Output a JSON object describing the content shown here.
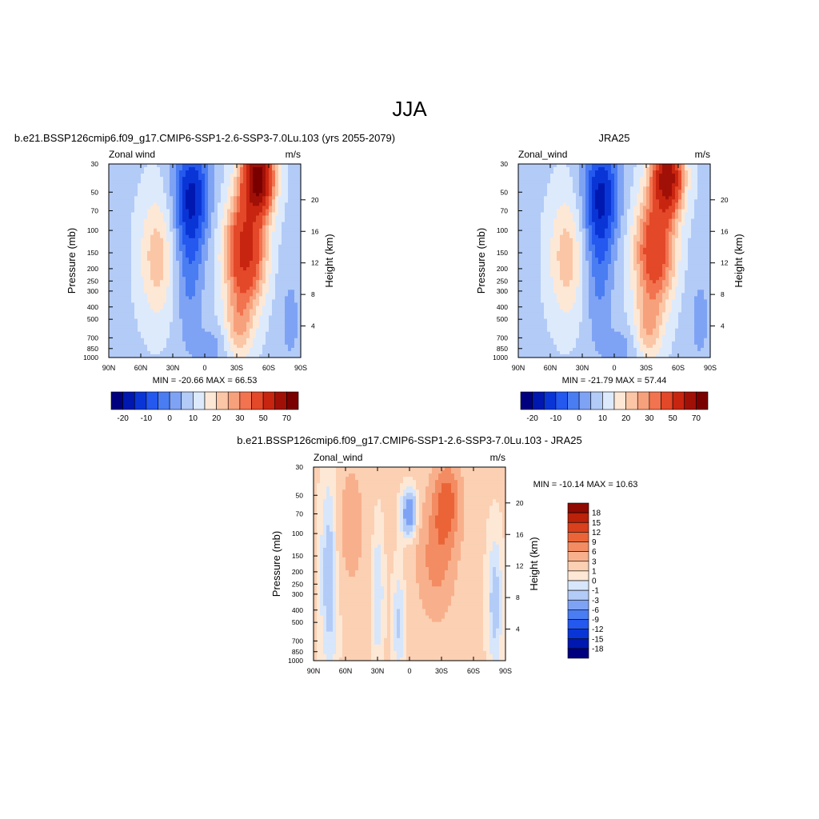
{
  "figure": {
    "title": "JJA"
  },
  "colors": {
    "abs_scale": [
      "#00007f",
      "#0018b0",
      "#0a35d6",
      "#2458ee",
      "#4a7cf2",
      "#7fa3f4",
      "#b3cbf7",
      "#ddeafc",
      "#fde8d6",
      "#fbc6a6",
      "#f7a07c",
      "#f2734f",
      "#e34829",
      "#c82511",
      "#a11007",
      "#7a0000"
    ],
    "diff_scale": [
      "#00007f",
      "#0018b0",
      "#0a35d6",
      "#2458ee",
      "#4a7cf2",
      "#7fa3f4",
      "#b3cbf7",
      "#d7e6fa",
      "#fde8d6",
      "#fbd0b3",
      "#f8b08c",
      "#f38c62",
      "#ea6438",
      "#d9401c",
      "#bb2209",
      "#8e0a02"
    ]
  },
  "chart_data": [
    {
      "type": "heatmap",
      "title": "b.e21.BSSP126cmip6.f09_g17.CMIP6-SSP1-2.6-SSP3-7.0Lu.103 (yrs 2055-2079)",
      "left_label": "Zonal wind",
      "right_label": "m/s",
      "xlabel": "",
      "ylabel": "Pressure (mb)",
      "y2label": "Height (km)",
      "x_ticks": [
        "90N",
        "60N",
        "30N",
        "0",
        "30S",
        "60S",
        "90S"
      ],
      "y_ticks": [
        "30",
        "50",
        "70",
        "100",
        "150",
        "200",
        "250",
        "300",
        "400",
        "500",
        "700",
        "850",
        "1000"
      ],
      "y2_ticks": [
        "20",
        "16",
        "12",
        "8",
        "4"
      ],
      "stats": "MIN = -20.66  MAX =  66.53",
      "min": -20.66,
      "max": 66.53,
      "colorbar_labels": [
        "-20",
        "-10",
        "0",
        "10",
        "20",
        "30",
        "50",
        "70"
      ],
      "ylog": true,
      "ylim": [
        1000,
        30
      ]
    },
    {
      "type": "heatmap",
      "title": "JRA25",
      "left_label": "Zonal_wind",
      "right_label": "m/s",
      "xlabel": "",
      "ylabel": "Pressure (mb)",
      "y2label": "Height (km)",
      "x_ticks": [
        "90N",
        "60N",
        "30N",
        "0",
        "30S",
        "60S",
        "90S"
      ],
      "y_ticks": [
        "30",
        "50",
        "70",
        "100",
        "150",
        "200",
        "250",
        "300",
        "400",
        "500",
        "700",
        "850",
        "1000"
      ],
      "y2_ticks": [
        "20",
        "16",
        "12",
        "8",
        "4"
      ],
      "stats": "MIN = -21.79  MAX =  57.44",
      "min": -21.79,
      "max": 57.44,
      "colorbar_labels": [
        "-20",
        "-10",
        "0",
        "10",
        "20",
        "30",
        "50",
        "70"
      ],
      "ylog": true,
      "ylim": [
        1000,
        30
      ]
    },
    {
      "type": "heatmap",
      "title": "b.e21.BSSP126cmip6.f09_g17.CMIP6-SSP1-2.6-SSP3-7.0Lu.103 - JRA25",
      "left_label": "Zonal_wind",
      "right_label": "m/s",
      "xlabel": "",
      "ylabel": "Pressure (mb)",
      "y2label": "Height (km)",
      "x_ticks": [
        "90N",
        "60N",
        "30N",
        "0",
        "30S",
        "60S",
        "90S"
      ],
      "y_ticks": [
        "30",
        "50",
        "70",
        "100",
        "150",
        "200",
        "250",
        "300",
        "400",
        "500",
        "700",
        "850",
        "1000"
      ],
      "y2_ticks": [
        "20",
        "16",
        "12",
        "8",
        "4"
      ],
      "stats": "MIN = -10.14  MAX =  10.63",
      "min": -10.14,
      "max": 10.63,
      "colorbar_labels": [
        "18",
        "15",
        "12",
        "9",
        "6",
        "3",
        "1",
        "0",
        "-1",
        "-3",
        "-6",
        "-9",
        "-12",
        "-15",
        "-18"
      ],
      "ylog": true,
      "ylim": [
        1000,
        30
      ]
    }
  ]
}
